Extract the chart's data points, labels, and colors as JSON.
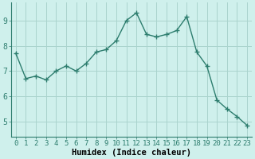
{
  "x": [
    0,
    1,
    2,
    3,
    4,
    5,
    6,
    7,
    8,
    9,
    10,
    11,
    12,
    13,
    14,
    15,
    16,
    17,
    18,
    19,
    20,
    21,
    22,
    23
  ],
  "y": [
    7.7,
    6.7,
    6.8,
    6.65,
    7.0,
    7.2,
    7.0,
    7.3,
    7.75,
    7.85,
    8.2,
    9.0,
    9.3,
    8.45,
    8.35,
    8.45,
    8.6,
    9.15,
    7.75,
    7.2,
    5.85,
    5.5,
    5.2,
    4.85
  ],
  "line_color": "#2d7d6e",
  "marker": "+",
  "markersize": 4,
  "linewidth": 1.0,
  "markeredgewidth": 1.0,
  "xlabel": "Humidex (Indice chaleur)",
  "xlabel_fontsize": 7.5,
  "tick_fontsize": 6.5,
  "bg_color": "#cff0ec",
  "grid_color": "#aad4ce",
  "yticks": [
    5,
    6,
    7,
    8,
    9
  ],
  "xticks": [
    0,
    1,
    2,
    3,
    4,
    5,
    6,
    7,
    8,
    9,
    10,
    11,
    12,
    13,
    14,
    15,
    16,
    17,
    18,
    19,
    20,
    21,
    22,
    23
  ],
  "ylim": [
    4.4,
    9.7
  ],
  "xlim": [
    -0.5,
    23.5
  ]
}
